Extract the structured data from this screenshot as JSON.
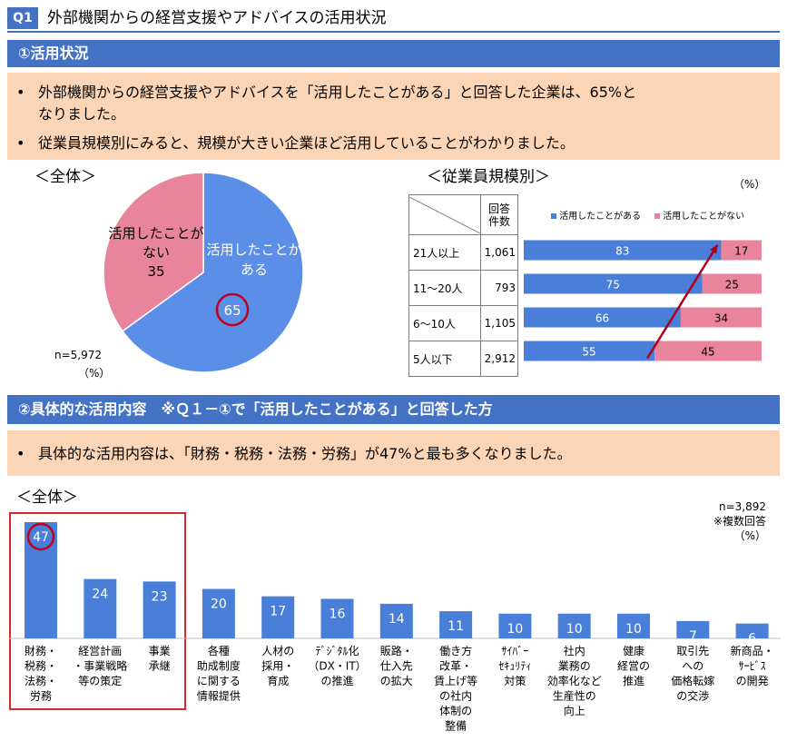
{
  "header": {
    "badge": "Q1",
    "title": "外部機関からの経営支援やアドバイスの活用状況"
  },
  "section1": {
    "bar_title": "①活用状況",
    "bullets": [
      "外部機関からの経営支援やアドバイスを「活用したことがある」と回答した企業は、65%と",
      "なりました。",
      "従業員規模別にみると、規模が大きい企業ほど活用していることがわかりました。"
    ],
    "overall_label": "＜全体＞",
    "size_label": "＜従業員規模別＞",
    "pct_unit": "（%）",
    "pie_n": "n=5,972",
    "pie_unit": "（%）"
  },
  "section2": {
    "bar_title": "②具体的な活用内容　※Ｑ１－①で「活用したことがある」と回答した方",
    "bullet": "具体的な活用内容は、「財務・税務・法務・労務」が47%と最も多くなりました。",
    "overall_label": "＜全体＞",
    "n": "n=3,892",
    "multi": "※複数回答",
    "unit": "（%）"
  },
  "chart_data": [
    {
      "type": "pie",
      "labels": [
        "活用したことがある",
        "活用したことがない"
      ],
      "label_lines": [
        [
          "活用したことが",
          "ある"
        ],
        [
          "活用したことが",
          "ない"
        ]
      ],
      "values": [
        65,
        35
      ],
      "colors": [
        "#5b8ee6",
        "#e8849c"
      ],
      "highlight": "活用したことがある"
    },
    {
      "type": "bar",
      "orientation": "horizontal",
      "stacked": true,
      "header_count": [
        "回答",
        "件数"
      ],
      "categories": [
        "21人以上",
        "11～20人",
        "6～10人",
        "5人以下"
      ],
      "counts": [
        "1,061",
        "793",
        "1,105",
        "2,912"
      ],
      "series": [
        {
          "name": "活用したことがある",
          "values": [
            83,
            75,
            66,
            55
          ],
          "color": "#4a7fd9"
        },
        {
          "name": "活用したことがない",
          "values": [
            17,
            25,
            34,
            45
          ],
          "color": "#e8849c"
        }
      ],
      "xlim": [
        0,
        100
      ]
    },
    {
      "type": "bar",
      "categories": [
        [
          "財務・",
          "税務・",
          "法務・",
          "労務"
        ],
        [
          "経営計画",
          "・事業戦略",
          "等の策定"
        ],
        [
          "事業",
          "承継"
        ],
        [
          "各種",
          "助成制度",
          "に関する",
          "情報提供"
        ],
        [
          "人材の",
          "採用・",
          "育成"
        ],
        [
          "ﾃﾞｼﾞﾀﾙ化",
          "（DX・IT）",
          "の推進"
        ],
        [
          "販路・",
          "仕入先",
          "の拡大"
        ],
        [
          "働き方",
          "改革・",
          "賃上げ等",
          "の社内",
          "体制の",
          "整備"
        ],
        [
          "ｻｲﾊﾞｰ",
          "ｾｷｭﾘﾃｨ",
          "対策"
        ],
        [
          "社内",
          "業務の",
          "効率化など",
          "生産性の",
          "向上"
        ],
        [
          "健康",
          "経営の",
          "推進"
        ],
        [
          "取引先",
          "への",
          "価格転嫁",
          "の交渉"
        ],
        [
          "新商品・",
          "ｻｰﾋﾞｽ",
          "の開発"
        ]
      ],
      "values": [
        47,
        24,
        23,
        20,
        17,
        16,
        14,
        11,
        10,
        10,
        10,
        7,
        6
      ],
      "color": "#4a7fd9",
      "ylim": [
        0,
        50
      ]
    }
  ]
}
